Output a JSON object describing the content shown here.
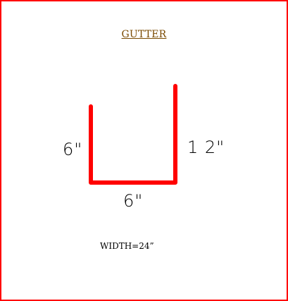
{
  "title": "GUTTER",
  "profile": {
    "color": "#ff0000",
    "left_dimension": "6\"",
    "right_dimension": "1 2\"",
    "bottom_dimension": "6\""
  },
  "width_note": "WIDTH=24”",
  "colors": {
    "frame_border": "#ff0000",
    "title_text": "#7a4a00",
    "background": "#ffffff"
  }
}
